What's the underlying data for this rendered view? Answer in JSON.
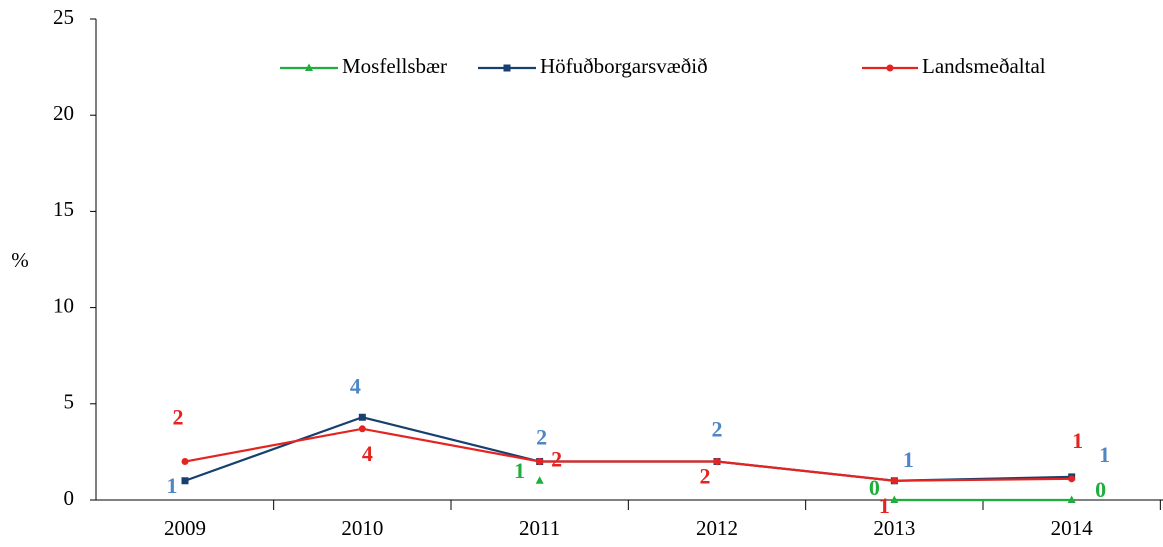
{
  "chart_data": {
    "type": "line",
    "ylabel": "%",
    "categories": [
      "2009",
      "2010",
      "2011",
      "2012",
      "2013",
      "2014"
    ],
    "series": [
      {
        "name": "Mosfellsbær",
        "color": "#1fae3c",
        "label_color": "#1fae3c",
        "marker": "triangle",
        "values": [
          null,
          null,
          1,
          null,
          0,
          0
        ]
      },
      {
        "name": "Höfuðborgarsvæðið",
        "color": "#17406e",
        "label_color": "#4f86c6",
        "marker": "square",
        "values": [
          1,
          4.3,
          2,
          2,
          1,
          1.2
        ],
        "value_labels": [
          "1",
          "4",
          "2",
          "2",
          "1",
          "1"
        ]
      },
      {
        "name": "Landsmeðaltal",
        "color": "#e52421",
        "label_color": "#e52421",
        "marker": "circle",
        "values": [
          2,
          3.7,
          2,
          2,
          1,
          1.1
        ],
        "value_labels": [
          "2",
          "4",
          "2",
          "2",
          "1",
          "1"
        ]
      }
    ],
    "ylim": [
      0,
      25
    ],
    "yticks": [
      0,
      5,
      10,
      15,
      20,
      25
    ]
  }
}
